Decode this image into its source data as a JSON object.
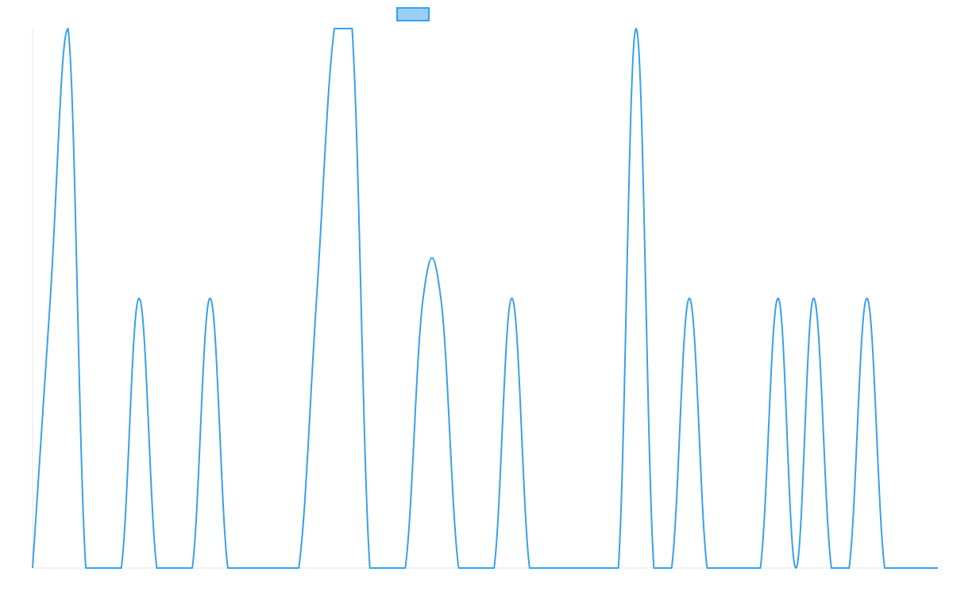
{
  "chart_data": {
    "type": "line",
    "title": "",
    "xlabel": "",
    "ylabel": "",
    "grid": false,
    "legend": "top-center",
    "color": "#36A2EB",
    "legend_fill": "#9AD0F5",
    "xlim": [
      0,
      51
    ],
    "ylim": [
      0,
      2
    ],
    "x": [
      0,
      1,
      2,
      3,
      4,
      5,
      6,
      7,
      8,
      9,
      10,
      11,
      12,
      13,
      14,
      15,
      16,
      17,
      18,
      19,
      20,
      21,
      22,
      23,
      24,
      25,
      26,
      27,
      28,
      29,
      30,
      31,
      32,
      33,
      34,
      35,
      36,
      37,
      38,
      39,
      40,
      41,
      42,
      43,
      44,
      45,
      46,
      47,
      48,
      49,
      50,
      51
    ],
    "series": [
      {
        "values": [
          0,
          1,
          2,
          0,
          0,
          0,
          1,
          0,
          0,
          0,
          1,
          0,
          0,
          0,
          0,
          0,
          1,
          2,
          2,
          0,
          0,
          0,
          1,
          1,
          0,
          0,
          0,
          1,
          0,
          0,
          0,
          0,
          0,
          0,
          2,
          0,
          0,
          1,
          0,
          0,
          0,
          0,
          1,
          0,
          1,
          0,
          0,
          1,
          0,
          0,
          0,
          0
        ]
      }
    ]
  }
}
